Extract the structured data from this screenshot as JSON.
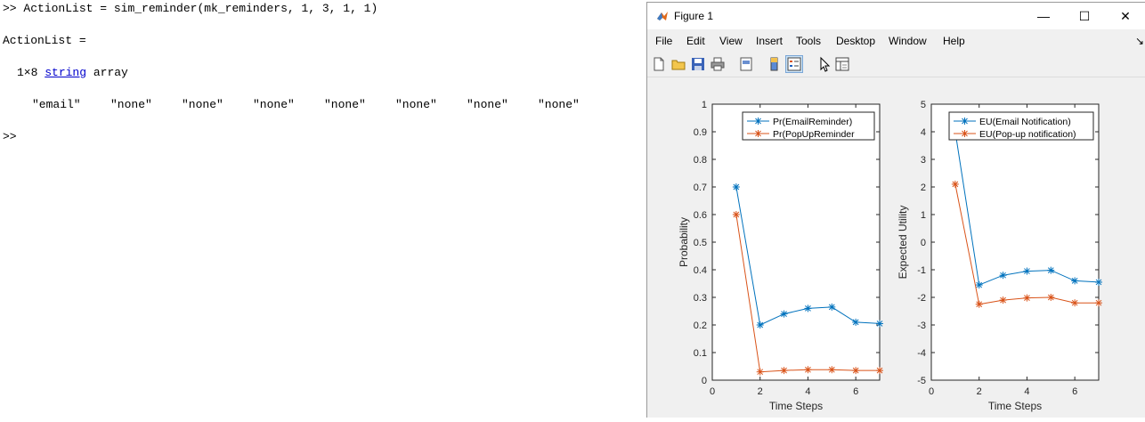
{
  "console": {
    "prompt": ">>",
    "command": "ActionList = sim_reminder(mk_reminders, 1, 3, 1, 1)",
    "output_var": "ActionList =",
    "size": "1×8",
    "type_keyword": "string",
    "type_suffix": "array",
    "values": [
      "\"email\"",
      "\"none\"",
      "\"none\"",
      "\"none\"",
      "\"none\"",
      "\"none\"",
      "\"none\"",
      "\"none\""
    ],
    "next_prompt": ">>"
  },
  "figure": {
    "title": "Figure 1",
    "window_buttons": {
      "minimize": "—",
      "maximize": "☐",
      "close": "✕"
    },
    "menu": [
      "File",
      "Edit",
      "View",
      "Insert",
      "Tools",
      "Desktop",
      "Window",
      "Help"
    ],
    "menu_arrow": "↘",
    "toolbar_icons": [
      "new-figure-icon",
      "open-file-icon",
      "save-icon",
      "print-icon",
      "print-preview-icon",
      "colorbar-icon",
      "legend-icon",
      "pointer-icon",
      "property-inspector-icon"
    ]
  },
  "colors": {
    "series1": "#0072BD",
    "series2": "#D95319"
  },
  "chart_data": [
    {
      "type": "line",
      "xlabel": "Time Steps",
      "ylabel": "Probability",
      "xlim": [
        0,
        7
      ],
      "ylim": [
        0,
        1
      ],
      "xticks": [
        0,
        2,
        4,
        6
      ],
      "yticks": [
        0,
        0.1,
        0.2,
        0.3,
        0.4,
        0.5,
        0.6,
        0.7,
        0.8,
        0.9,
        1
      ],
      "yticklabels": [
        "0",
        "0.1",
        "0.2",
        "0.3",
        "0.4",
        "0.5",
        "0.6",
        "0.7",
        "0.8",
        "0.9",
        "1"
      ],
      "legend_placement": "top-right",
      "series": [
        {
          "name": "Pr(EmailReminder)",
          "x": [
            1,
            2,
            3,
            4,
            5,
            6,
            7
          ],
          "y": [
            0.7,
            0.2,
            0.24,
            0.26,
            0.265,
            0.21,
            0.205
          ]
        },
        {
          "name": "Pr(PopUpReminder",
          "x": [
            1,
            2,
            3,
            4,
            5,
            6,
            7
          ],
          "y": [
            0.6,
            0.03,
            0.035,
            0.038,
            0.038,
            0.035,
            0.035
          ]
        }
      ]
    },
    {
      "type": "line",
      "xlabel": "Time Steps",
      "ylabel": "Expected Utility",
      "xlim": [
        0,
        7
      ],
      "ylim": [
        -5,
        5
      ],
      "xticks": [
        0,
        2,
        4,
        6
      ],
      "yticks": [
        -5,
        -4,
        -3,
        -2,
        -1,
        0,
        1,
        2,
        3,
        4,
        5
      ],
      "yticklabels": [
        "-5",
        "-4",
        "-3",
        "-2",
        "-1",
        "0",
        "1",
        "2",
        "3",
        "4",
        "5"
      ],
      "legend_placement": "top",
      "series": [
        {
          "name": "EU(Email Notification)",
          "x": [
            1,
            2,
            3,
            4,
            5,
            6,
            7
          ],
          "y": [
            4.0,
            -1.55,
            -1.2,
            -1.05,
            -1.02,
            -1.4,
            -1.45
          ]
        },
        {
          "name": "EU(Pop-up notification)",
          "x": [
            1,
            2,
            3,
            4,
            5,
            6,
            7
          ],
          "y": [
            2.1,
            -2.25,
            -2.1,
            -2.02,
            -2.0,
            -2.2,
            -2.2
          ]
        }
      ]
    }
  ]
}
